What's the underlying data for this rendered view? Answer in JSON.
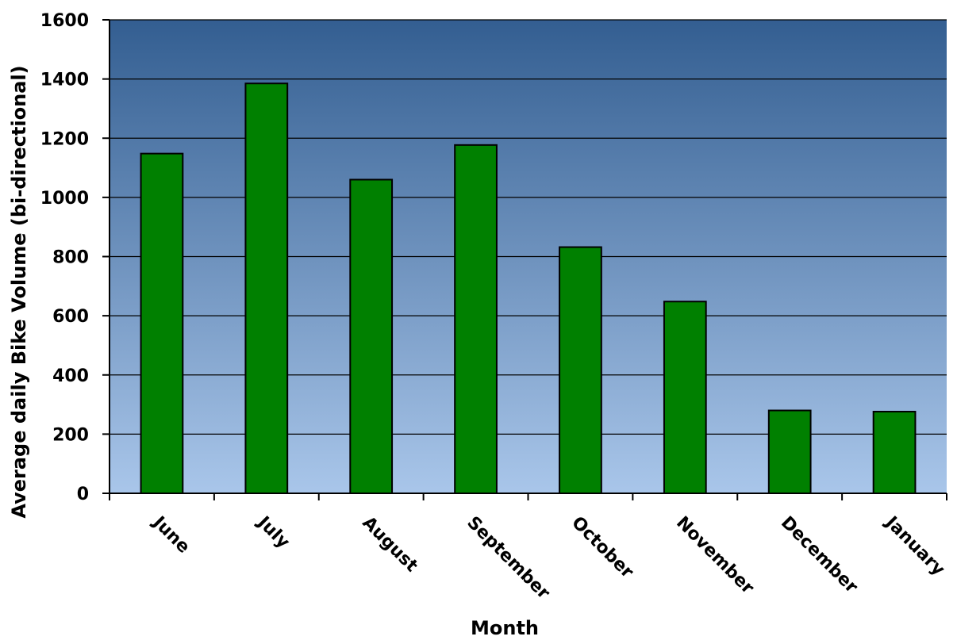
{
  "chart_data": {
    "type": "bar",
    "title": "",
    "xlabel": "Month",
    "ylabel": "Average daily  Bike Volume (bi-directional)",
    "categories": [
      "June",
      "July",
      "August",
      "September",
      "October",
      "November",
      "December",
      "January"
    ],
    "values": [
      1148,
      1385,
      1060,
      1177,
      832,
      648,
      280,
      276
    ],
    "ylim": [
      0,
      1600
    ],
    "yticks": [
      "0",
      "200",
      "400",
      "600",
      "800",
      "1000",
      "1200",
      "1400",
      "1600"
    ],
    "grid": true,
    "legend": "none",
    "colors": {
      "bar_fill": "#008000",
      "bar_stroke": "#000000",
      "plot_bg_top": "#335e91",
      "plot_bg_bottom": "#a9c6ea",
      "gridline": "#000000"
    }
  }
}
